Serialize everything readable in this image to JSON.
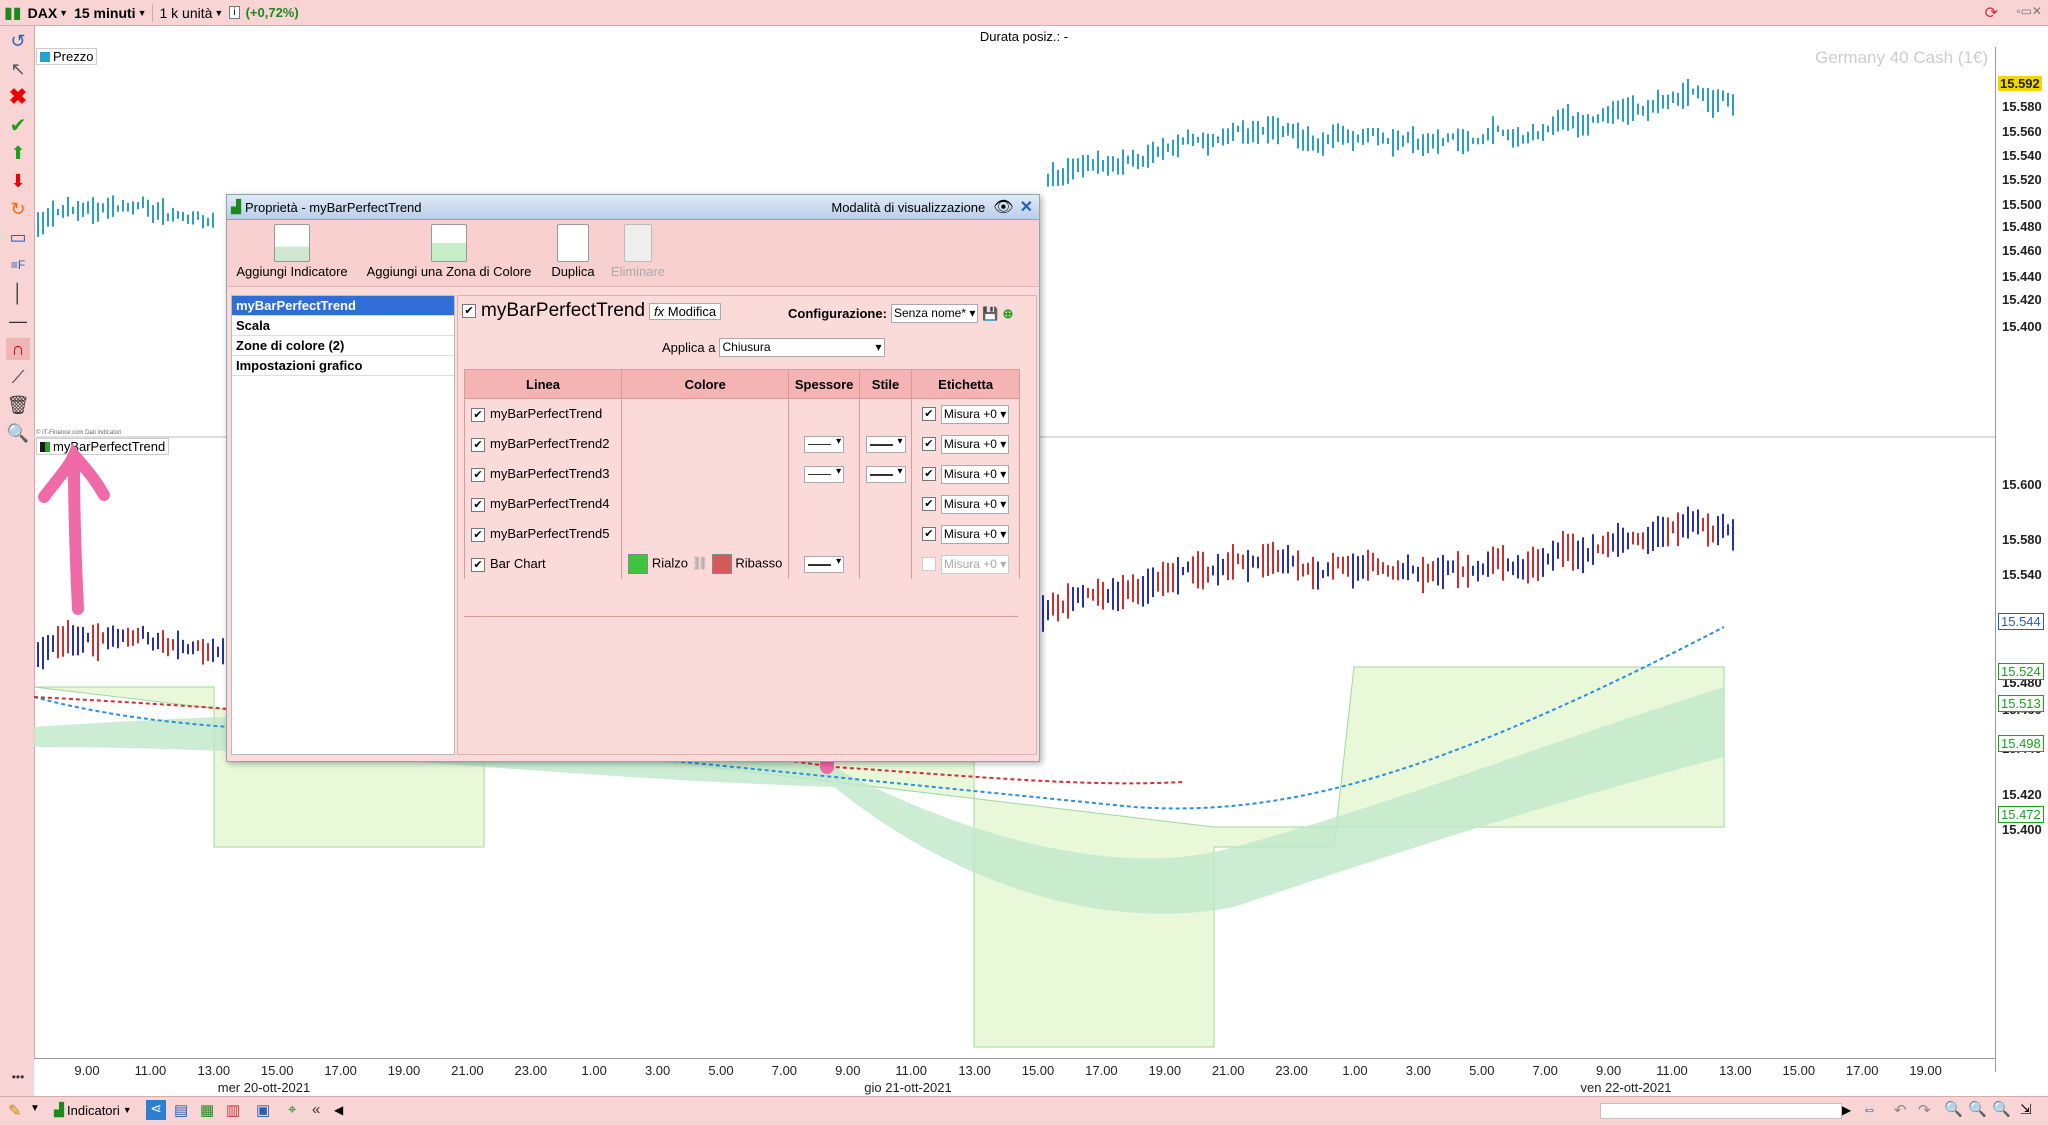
{
  "topbar": {
    "instrument": "DAX",
    "timeframe": "15 minuti",
    "units": "1 k unità",
    "change": "(+0,72%)"
  },
  "header": {
    "position_duration": "Durata posiz.: -"
  },
  "chart": {
    "watermark": "Germany 40 Cash (1€)",
    "price_legend": "Prezzo",
    "indicator_legend": "myBarPerfectTrend",
    "small_credit": "© IT-Finance.com Dati indicatori",
    "upper_ticks": [
      "15.600",
      "15.580",
      "15.560",
      "15.540",
      "15.520",
      "15.500",
      "15.480",
      "15.460",
      "15.440",
      "15.420",
      "15.400"
    ],
    "upper_last": "15.592",
    "lower_ticks": [
      "15.600",
      "15.580",
      "15.540",
      "15.520",
      "15.480",
      "15.460",
      "15.440",
      "15.420",
      "15.400"
    ],
    "lower_labels": [
      "15.544",
      "15.524",
      "15.513",
      "15.498",
      "15.472"
    ],
    "time_ticks": [
      "9.00",
      "11.00",
      "13.00",
      "15.00",
      "17.00",
      "19.00",
      "21.00",
      "23.00",
      "1.00",
      "3.00",
      "5.00",
      "7.00",
      "9.00",
      "11.00",
      "13.00",
      "15.00",
      "17.00",
      "19.00",
      "21.00",
      "23.00",
      "1.00",
      "3.00",
      "5.00",
      "7.00",
      "9.00",
      "11.00",
      "13.00",
      "15.00",
      "17.00",
      "19.00"
    ],
    "dates": [
      "mer 20-ott-2021",
      "gio 21-ott-2021",
      "ven 22-ott-2021"
    ]
  },
  "bottombar": {
    "indicators_button": "Indicatori"
  },
  "dialog": {
    "title": "Proprietà - myBarPerfectTrend",
    "view_mode": "Modalità di visualizzazione",
    "toolbar": {
      "add_indicator": "Aggiungi Indicatore",
      "add_zone": "Aggiungi una Zona di Colore",
      "duplicate": "Duplica",
      "delete": "Eliminare"
    },
    "tree": [
      "myBarPerfectTrend",
      "Scala",
      "Zone di colore (2)",
      "Impostazioni grafico"
    ],
    "indicator_name": "myBarPerfectTrend",
    "modify": "Modifica",
    "config_label": "Configurazione:",
    "config_value": "Senza nome*",
    "apply_label": "Applica a",
    "apply_value": "Chiusura",
    "table": {
      "headers": [
        "Linea",
        "Colore",
        "Spessore",
        "Stile",
        "Etichetta"
      ],
      "rows": [
        {
          "name": "myBarPerfectTrend",
          "label": "Misura +0"
        },
        {
          "name": "myBarPerfectTrend2",
          "label": "Misura +0"
        },
        {
          "name": "myBarPerfectTrend3",
          "label": "Misura +0"
        },
        {
          "name": "myBarPerfectTrend4",
          "label": "Misura +0"
        },
        {
          "name": "myBarPerfectTrend5",
          "label": "Misura +0"
        },
        {
          "name": "Bar Chart",
          "label": "Misura +0",
          "up": "Rialzo",
          "down": "Ribasso"
        }
      ]
    }
  },
  "colors": {
    "up": "#3dc63d",
    "down": "#d65a5a",
    "accent": "#2f6ed6",
    "arrow": "#f06aa8"
  }
}
